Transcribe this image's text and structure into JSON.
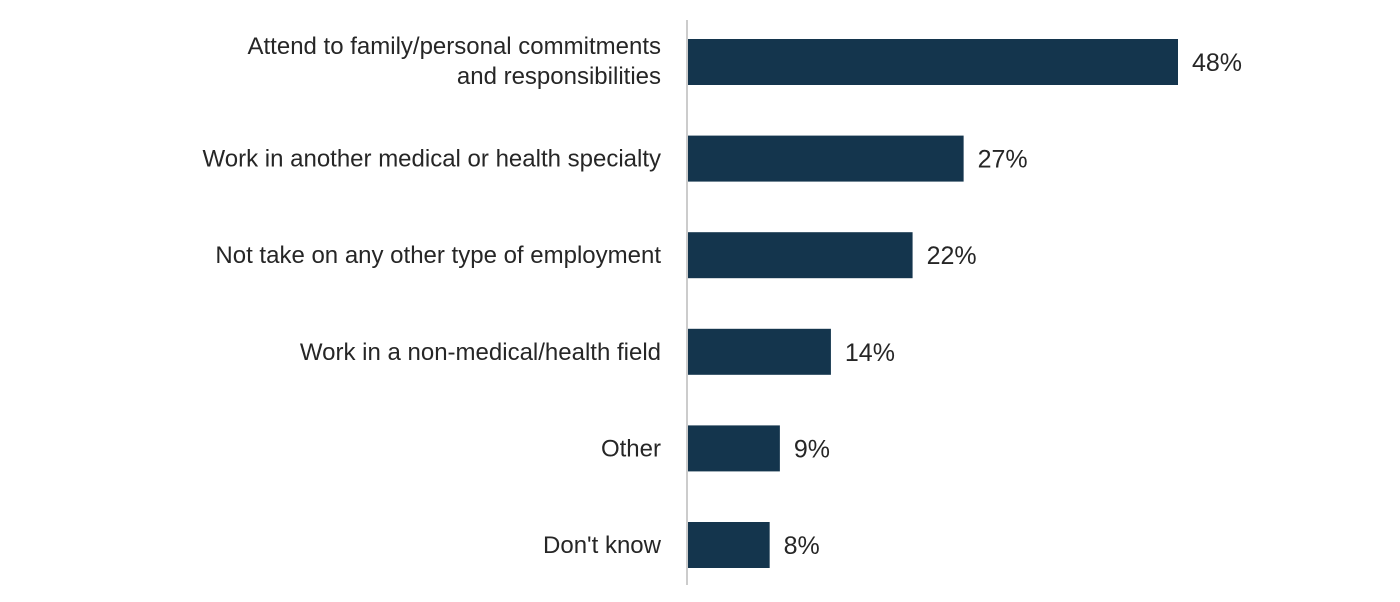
{
  "chart_data": {
    "type": "bar",
    "orientation": "horizontal",
    "categories": [
      [
        "Attend to family/personal commitments",
        "and responsibilities"
      ],
      [
        "Work in another medical or health specialty"
      ],
      [
        "Not take on any other type of employment"
      ],
      [
        "Work in a non-medical/health field"
      ],
      [
        "Other"
      ],
      [
        "Don't know"
      ]
    ],
    "values": [
      48,
      27,
      22,
      14,
      9,
      8
    ],
    "value_labels": [
      "48%",
      "27%",
      "22%",
      "14%",
      "9%",
      "8%"
    ],
    "unit": "%",
    "xlim": [
      0,
      48
    ],
    "grid": false,
    "legend": "none",
    "colors": {
      "bar": "#14354d",
      "axis": "#cccccc",
      "text": "#262626"
    }
  }
}
